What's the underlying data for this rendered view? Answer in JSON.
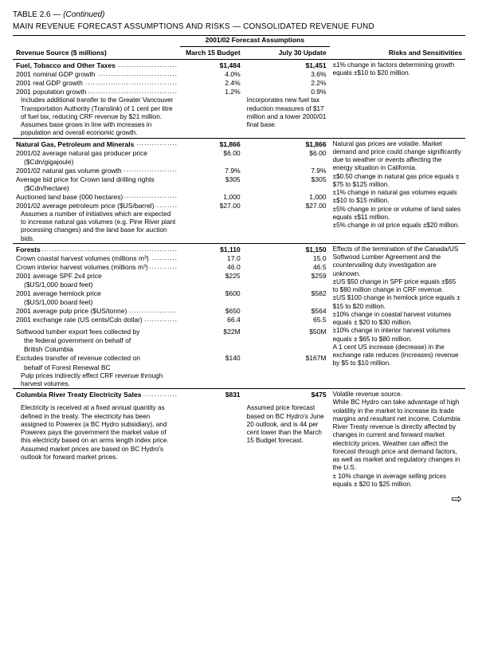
{
  "meta": {
    "table_label": "TABLE  2.6 —",
    "continued": "(Continued)",
    "title": "MAIN REVENUE FORECAST ASSUMPTIONS AND RISKS — CONSOLIDATED REVENUE FUND"
  },
  "headers": {
    "forecast_group": "2001/02 Forecast Assumptions",
    "col1": "Revenue Source ($ millions)",
    "col2": "March 15 Budget",
    "col3": "July 30 Update",
    "col4": "Risks and Sensitivities"
  },
  "sections": [
    {
      "title": "Fuel, Tobacco and Other Taxes",
      "march": "$1,484",
      "july": "$1,451",
      "rows": [
        {
          "label": "2001 nominal GDP growth",
          "march": "4.0%",
          "july": "3.6%"
        },
        {
          "label": "2001 real GDP growth",
          "march": "2.4%",
          "july": "2.2%"
        },
        {
          "label": "2001 population growth",
          "march": "1.2%",
          "july": "0.9%"
        }
      ],
      "march_note": "Includes additional transfer to the Greater Vancouver Transportation Authority (Translink) of 1 cent per litre of fuel tax, reducing CRF revenue by $21 million. Assumes base grows in line with increases in population and overall economic growth.",
      "july_note": "Incorporates new fuel tax reduction measures of $17 million and a lower 2000/01 final base.",
      "risks": "±1% change in factors determining growth equals ±$10 to $20 million."
    },
    {
      "title": "Natural Gas, Petroleum and Minerals",
      "march": "$1,866",
      "july": "$1,866",
      "rows": [
        {
          "label": "2001/02 average natural gas producer price ($Cdn/gigajoule)",
          "march": "$6.00",
          "july": "$6.00",
          "wrap": true
        },
        {
          "label": "2001/02 natural gas volume growth",
          "march": "7.9%",
          "july": "7.9%"
        },
        {
          "label": "Average bid price for Crown land drilling rights ($Cdn/hectare)",
          "march": "$305",
          "july": "$305",
          "wrap": true
        },
        {
          "label": "Auctioned land base (000 hectares)",
          "march": "1,000",
          "july": "1,000"
        },
        {
          "label": "2001/02 average petroleum price ($US/barrel)",
          "march": "$27.00",
          "july": "$27.00"
        }
      ],
      "march_note": "Assumes a number of initiatives which are expected to increase natural gas volumes (e.g. Pine River plant processing changes) and the land base for auction bids.",
      "risks": "Natural gas prices are volatile. Market demand and price could change significantly due to weather or events affecting the energy situation in California.\n±$0.50 change in natural gas price equals ±$75 to $125 million.\n±1% change in natural gas volumes equals ±$10 to $15 million.\n±5% change in price or volume of land sales equals ±$11 million.\n±5% change in oil price equals ±$20 million."
    },
    {
      "title": "Forests",
      "march": "$1,110",
      "july": "$1,150",
      "rows": [
        {
          "label": "Crown coastal harvest volumes (millions m³)",
          "march": "17.0",
          "july": "15.0"
        },
        {
          "label": "Crown interior harvest volumes (millions m³)",
          "march": "46.0",
          "july": "46.5"
        },
        {
          "label": "2001 average SPF 2x4 price ($US/1,000 board feet)",
          "march": "$225",
          "july": "$259",
          "wrap": true
        },
        {
          "label": "2001 average hemlock price ($US/1,000 board feet)",
          "march": "$600",
          "july": "$582",
          "wrap": true
        },
        {
          "label": "2001 average pulp price ($US/tonne)",
          "march": "$650",
          "july": "$564"
        },
        {
          "label": "2001 exchange rate (US cents/Cdn dollar)",
          "march": "66.4",
          "july": "65.5"
        }
      ],
      "sub_rows": [
        {
          "label": "Softwood lumber export fees collected by the federal government on behalf of British Columbia",
          "march": "$22M",
          "july": "$50M"
        },
        {
          "label": "Excludes transfer of revenue collected on behalf of Forest Renewal BC",
          "march": "$140",
          "july": "$167M"
        }
      ],
      "march_note2": "Pulp prices indirectly effect CRF revenue through harvest volumes.",
      "risks": "Effects of the termination of the Canada/US Softwood Lumber Agreement and the countervailing duty investigation are unknown.\n±US $50 change in SPF price equals ±$65 to $80 million change in CRF revenue.\n±US $100 change in hemlock price equals ±$15 to $20 million.\n±10% change in coastal harvest volumes equals ± $20 to $30 million.\n±10% change in interior harvest volumes equals ± $65 to $80 million.\nA 1 cent US increase (decrease) in the exchange rate reduces (increases) revenue by $5 to $10 million."
    },
    {
      "title": "Columbia River Treaty Electricity Sales",
      "march": "$831",
      "july": "$475",
      "march_note": "Electricity is received at a fixed annual quantity as defined in the treaty. The electricity has been assigned to Powerex (a BC Hydro subsidiary), and Powerex pays the government the market value of this electricity based on an arms length index price. Assumed market prices are based on BC Hydro's outlook for forward market prices.",
      "july_note": "Assumed price forecast based on BC Hydro's June 20 outlook, and is 44 per cent lower than the March 15 Budget forecast.",
      "risks": "Volatile revenue source.\nWhile BC Hydro can take advantage of high volatility in the market to increase its trade margins and resultant net income, Columbia River Treaty revenue is directly affected by changes in current and forward market electricity prices. Weather can affect the forecast through price and demand factors, as well as market and regulatory changes in the U.S.\n± 10% change in average selling prices equals ± $20 to $25 million."
    }
  ]
}
